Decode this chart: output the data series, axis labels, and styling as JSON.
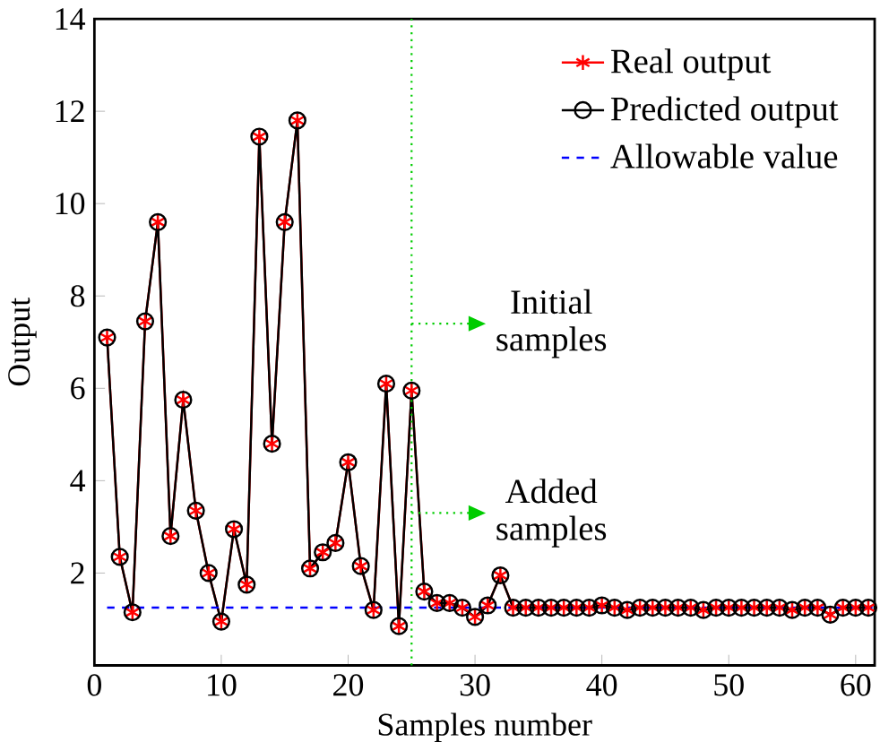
{
  "chart_data": {
    "type": "line",
    "xlabel": "Samples number",
    "ylabel": "Output",
    "xlim": [
      0,
      61.5
    ],
    "ylim": [
      0,
      14
    ],
    "xticks": [
      0,
      10,
      20,
      30,
      40,
      50,
      60
    ],
    "yticks": [
      {
        "value": 0,
        "label": null
      },
      2,
      4,
      6,
      8,
      10,
      12,
      14
    ],
    "legend": "top right",
    "grid": false,
    "series": [
      {
        "name": "Real output",
        "color": "#ff0000",
        "marker": "cross",
        "line_style": "solid",
        "x": [
          1,
          2,
          3,
          4,
          5,
          6,
          7,
          8,
          9,
          10,
          11,
          12,
          13,
          14,
          15,
          16,
          17,
          18,
          19,
          20,
          21,
          22,
          23,
          24,
          25,
          26,
          27,
          28,
          29,
          30,
          31,
          32,
          33,
          34,
          35,
          36,
          37,
          38,
          39,
          40,
          41,
          42,
          43,
          44,
          45,
          46,
          47,
          48,
          49,
          50,
          51,
          52,
          53,
          54,
          55,
          56,
          57,
          58,
          59,
          60,
          61
        ],
        "values": [
          7.1,
          2.35,
          1.15,
          7.45,
          9.6,
          2.8,
          5.75,
          3.35,
          2.0,
          0.95,
          2.95,
          1.75,
          11.45,
          4.8,
          9.6,
          11.8,
          2.1,
          2.45,
          2.65,
          4.4,
          2.15,
          1.2,
          6.1,
          0.85,
          5.95,
          1.6,
          1.35,
          1.35,
          1.25,
          1.05,
          1.3,
          1.95,
          1.25,
          1.25,
          1.25,
          1.25,
          1.25,
          1.25,
          1.25,
          1.3,
          1.25,
          1.2,
          1.25,
          1.25,
          1.25,
          1.25,
          1.25,
          1.2,
          1.25,
          1.25,
          1.25,
          1.25,
          1.25,
          1.25,
          1.2,
          1.25,
          1.25,
          1.1,
          1.25,
          1.25,
          1.25
        ]
      },
      {
        "name": "Predicted output",
        "color": "#000000",
        "marker": "circle",
        "line_style": "solid",
        "x": [
          1,
          2,
          3,
          4,
          5,
          6,
          7,
          8,
          9,
          10,
          11,
          12,
          13,
          14,
          15,
          16,
          17,
          18,
          19,
          20,
          21,
          22,
          23,
          24,
          25,
          26,
          27,
          28,
          29,
          30,
          31,
          32,
          33,
          34,
          35,
          36,
          37,
          38,
          39,
          40,
          41,
          42,
          43,
          44,
          45,
          46,
          47,
          48,
          49,
          50,
          51,
          52,
          53,
          54,
          55,
          56,
          57,
          58,
          59,
          60,
          61
        ],
        "values": [
          7.1,
          2.35,
          1.15,
          7.45,
          9.6,
          2.8,
          5.75,
          3.35,
          2.0,
          0.95,
          2.95,
          1.75,
          11.45,
          4.8,
          9.6,
          11.8,
          2.1,
          2.45,
          2.65,
          4.4,
          2.15,
          1.2,
          6.1,
          0.85,
          5.95,
          1.6,
          1.35,
          1.35,
          1.25,
          1.05,
          1.3,
          1.95,
          1.25,
          1.25,
          1.25,
          1.25,
          1.25,
          1.25,
          1.25,
          1.3,
          1.25,
          1.2,
          1.25,
          1.25,
          1.25,
          1.25,
          1.25,
          1.2,
          1.25,
          1.25,
          1.25,
          1.25,
          1.25,
          1.25,
          1.2,
          1.25,
          1.25,
          1.1,
          1.25,
          1.25,
          1.25
        ]
      },
      {
        "name": "Allowable value",
        "color": "#0000ff",
        "marker": "none",
        "line_style": "dashed",
        "x": [
          1,
          61.5
        ],
        "values": [
          1.25,
          1.25
        ]
      }
    ],
    "ref_lines": [
      {
        "axis": "x",
        "value": 25,
        "color": "#00cc00",
        "line_style": "dotted"
      }
    ],
    "annotations": [
      {
        "text": "Initial samples",
        "x": 25,
        "y": 7.4
      },
      {
        "text": "Added samples",
        "x": 25,
        "y": 3.3
      }
    ]
  }
}
